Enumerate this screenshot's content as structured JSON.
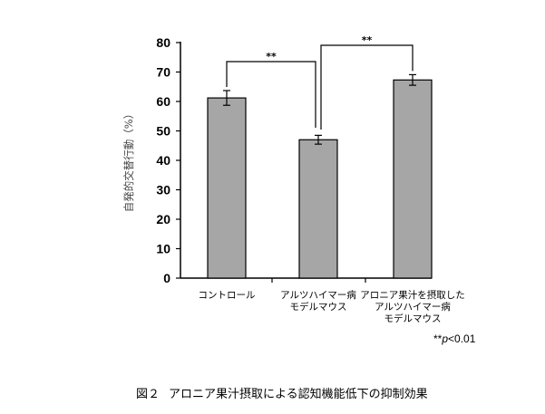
{
  "chart_data": {
    "type": "bar",
    "categories": [
      [
        "コントロール"
      ],
      [
        "アルツハイマー病",
        "モデルマウス"
      ],
      [
        "アロニア果汁を摂取した",
        "アルツハイマー病",
        "モデルマウス"
      ]
    ],
    "values": [
      61.2,
      47.0,
      67.3
    ],
    "errors": [
      2.5,
      1.5,
      1.8
    ],
    "ylabel": "自発的交替行動（%）",
    "ylim": [
      0,
      80
    ],
    "yticks": [
      0,
      10,
      20,
      30,
      40,
      50,
      60,
      70,
      80
    ],
    "bar_color": "#a6a6a6",
    "bar_edge_color": "#000000",
    "grid": false,
    "significance": [
      {
        "from": 0,
        "to": 1,
        "label": "**"
      },
      {
        "from": 1,
        "to": 2,
        "label": "**"
      }
    ]
  },
  "p_note": {
    "prefix": "**",
    "p": "p",
    "rest": "<0.01"
  },
  "caption": {
    "number": "図２",
    "text": "アロニア果汁摂取による認知機能低下の抑制効果"
  }
}
